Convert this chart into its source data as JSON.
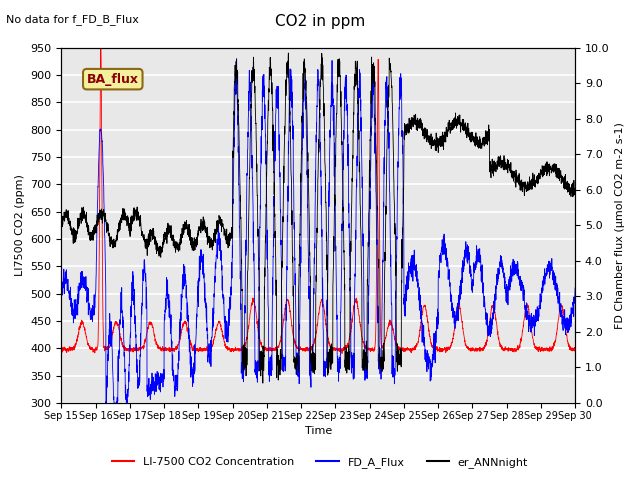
{
  "title": "CO2 in ppm",
  "top_left_text": "No data for f_FD_B_Flux",
  "box_label": "BA_flux",
  "xlabel": "Time",
  "ylabel_left": "LI7500 CO2 (ppm)",
  "ylabel_right": "FD Chamber flux (μmol CO2 m-2 s-1)",
  "ylim_left": [
    300,
    950
  ],
  "ylim_right": [
    0.0,
    10.0
  ],
  "yticks_left": [
    300,
    350,
    400,
    450,
    500,
    550,
    600,
    650,
    700,
    750,
    800,
    850,
    900,
    950
  ],
  "yticks_right": [
    0.0,
    1.0,
    2.0,
    3.0,
    4.0,
    5.0,
    6.0,
    7.0,
    8.0,
    9.0,
    10.0
  ],
  "xtick_labels": [
    "Sep 15",
    "Sep 16",
    "Sep 17",
    "Sep 18",
    "Sep 19",
    "Sep 20",
    "Sep 21",
    "Sep 22",
    "Sep 23",
    "Sep 24",
    "Sep 25",
    "Sep 26",
    "Sep 27",
    "Sep 28",
    "Sep 29",
    "Sep 30"
  ],
  "legend_entries": [
    "LI-7500 CO2 Concentration",
    "FD_A_Flux",
    "er_ANNnight"
  ],
  "line_color_red": "#ff0000",
  "line_color_blue": "#0000ff",
  "line_color_black": "#000000",
  "background_color": "#e8e8e8",
  "grid_color": "#ffffff",
  "n_points": 3000
}
